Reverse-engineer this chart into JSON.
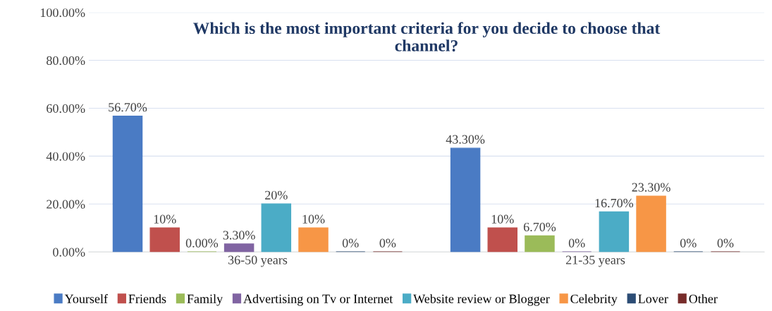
{
  "chart_data": {
    "type": "bar",
    "title": "Which is the most important criteria for you decide to choose that\nchannel?",
    "categories": [
      "36-50 years",
      "21-35 years"
    ],
    "series": [
      {
        "name": "Yourself",
        "color": "#4a7bc4",
        "values": [
          56.7,
          43.3
        ],
        "value_labels": [
          "56.70%",
          "43.30%"
        ]
      },
      {
        "name": "Friends",
        "color": "#c0504d",
        "values": [
          10,
          10
        ],
        "value_labels": [
          "10%",
          "10%"
        ]
      },
      {
        "name": "Family",
        "color": "#9bbb59",
        "values": [
          0,
          6.7
        ],
        "value_labels": [
          "0.00%",
          "6.70%"
        ]
      },
      {
        "name": "Advertising on Tv or Internet",
        "color": "#8064a2",
        "values": [
          3.3,
          0
        ],
        "value_labels": [
          "3.30%",
          "0%"
        ]
      },
      {
        "name": "Website review or Blogger",
        "color": "#4bacc6",
        "values": [
          20,
          16.7
        ],
        "value_labels": [
          "20%",
          "16.70%"
        ]
      },
      {
        "name": "Celebrity",
        "color": "#f79646",
        "values": [
          10,
          23.3
        ],
        "value_labels": [
          "10%",
          "23.30%"
        ]
      },
      {
        "name": "Lover",
        "color": "#2c4d75",
        "values": [
          0,
          0
        ],
        "value_labels": [
          "0%",
          "0%"
        ]
      },
      {
        "name": "Other",
        "color": "#772c2a",
        "values": [
          0,
          0
        ],
        "value_labels": [
          "0%",
          "0%"
        ]
      }
    ],
    "ylim": [
      0,
      100
    ],
    "yticks": [
      {
        "value": 0,
        "label": "0.00%"
      },
      {
        "value": 20,
        "label": "20.00%"
      },
      {
        "value": 40,
        "label": "40.00%"
      },
      {
        "value": 60,
        "label": "60.00%"
      },
      {
        "value": 80,
        "label": "80.00%"
      },
      {
        "value": 100,
        "label": "100.00%"
      }
    ],
    "grid": "y",
    "legend": "bottom"
  }
}
